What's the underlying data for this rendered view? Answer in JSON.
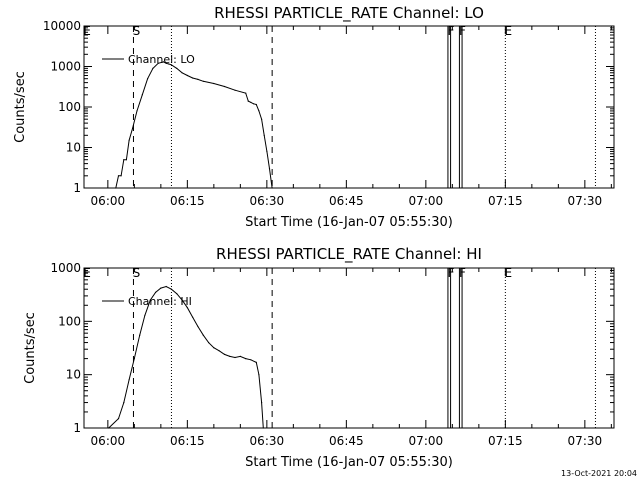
{
  "timestamp": "13-Oct-2021 20:04",
  "chart_data": [
    {
      "type": "line",
      "title": "RHESSI PARTICLE_RATE Channel: LO",
      "xlabel": "Start Time (16-Jan-07 05:55:30)",
      "ylabel": "Counts/sec",
      "legend": {
        "label": "Channel: LO",
        "position": "top-left"
      },
      "y_scale": "log",
      "xlim": [
        "05:55:30",
        "07:35:30"
      ],
      "ylim": [
        1,
        10000
      ],
      "x_ticks": [
        "06:00",
        "06:15",
        "06:30",
        "06:45",
        "07:00",
        "07:15",
        "07:30"
      ],
      "y_ticks": [
        "1",
        "10",
        "100",
        "1000",
        "10000"
      ],
      "markers": [
        {
          "label": "E",
          "time": "05:55:30",
          "style": "none"
        },
        {
          "label": "S",
          "time": "06:04:50",
          "style": "dashed"
        },
        {
          "label": "",
          "time": "06:12:00",
          "style": "dotted"
        },
        {
          "label": "",
          "time": "06:31:00",
          "style": "dashed"
        },
        {
          "label": "F",
          "time": "07:04:10",
          "style": "solid"
        },
        {
          "label": "",
          "time": "07:04:40",
          "style": "solid"
        },
        {
          "label": "F",
          "time": "07:06:20",
          "style": "solid"
        },
        {
          "label": "",
          "time": "07:06:50",
          "style": "solid"
        },
        {
          "label": "E",
          "time": "07:15:00",
          "style": "dotted"
        },
        {
          "label": "",
          "time": "07:32:00",
          "style": "dotted"
        }
      ],
      "series": [
        {
          "x": [
            "06:01:30",
            "06:02:00",
            "06:02:30",
            "06:03:00",
            "06:03:30",
            "06:04:00",
            "06:04:40",
            "06:05:30",
            "06:06:30",
            "06:07:30",
            "06:08:30",
            "06:09:30",
            "06:10:30",
            "06:11:00",
            "06:11:30",
            "06:12:00",
            "06:13:00",
            "06:14:00",
            "06:15:00",
            "06:16:00",
            "06:17:00",
            "06:18:00",
            "06:20:00",
            "06:22:00",
            "06:24:00",
            "06:26:00",
            "06:26:30",
            "06:27:00",
            "06:27:30",
            "06:28:00",
            "06:28:30",
            "06:29:00",
            "06:29:30",
            "06:30:00",
            "06:30:30",
            "06:31:00"
          ],
          "y": [
            1,
            2,
            2,
            5,
            5,
            15,
            30,
            80,
            200,
            500,
            900,
            1200,
            1300,
            1200,
            1150,
            1100,
            900,
            700,
            600,
            520,
            480,
            430,
            380,
            320,
            260,
            220,
            140,
            130,
            120,
            115,
            80,
            50,
            20,
            8,
            3,
            1
          ]
        }
      ]
    },
    {
      "type": "line",
      "title": "RHESSI PARTICLE_RATE Channel: HI",
      "xlabel": "Start Time (16-Jan-07 05:55:30)",
      "ylabel": "Counts/sec",
      "legend": {
        "label": "Channel: HI",
        "position": "top-left"
      },
      "y_scale": "log",
      "xlim": [
        "05:55:30",
        "07:35:30"
      ],
      "ylim": [
        1,
        1000
      ],
      "x_ticks": [
        "06:00",
        "06:15",
        "06:30",
        "06:45",
        "07:00",
        "07:15",
        "07:30"
      ],
      "y_ticks": [
        "1",
        "10",
        "100",
        "1000"
      ],
      "markers": [
        {
          "label": "E",
          "time": "05:55:30",
          "style": "none"
        },
        {
          "label": "S",
          "time": "06:04:50",
          "style": "dashed"
        },
        {
          "label": "",
          "time": "06:12:00",
          "style": "dotted"
        },
        {
          "label": "",
          "time": "06:31:00",
          "style": "dashed"
        },
        {
          "label": "F",
          "time": "07:04:10",
          "style": "solid"
        },
        {
          "label": "",
          "time": "07:04:40",
          "style": "solid"
        },
        {
          "label": "F",
          "time": "07:06:20",
          "style": "solid"
        },
        {
          "label": "",
          "time": "07:06:50",
          "style": "solid"
        },
        {
          "label": "E",
          "time": "07:15:00",
          "style": "dotted"
        },
        {
          "label": "",
          "time": "07:32:00",
          "style": "dotted"
        }
      ],
      "series": [
        {
          "x": [
            "06:00:10",
            "06:02:00",
            "06:03:00",
            "06:04:00",
            "06:05:00",
            "06:06:00",
            "06:07:00",
            "06:08:00",
            "06:09:00",
            "06:10:00",
            "06:11:00",
            "06:12:00",
            "06:13:00",
            "06:14:00",
            "06:15:00",
            "06:16:00",
            "06:17:00",
            "06:18:00",
            "06:19:00",
            "06:20:00",
            "06:21:00",
            "06:22:00",
            "06:23:00",
            "06:24:00",
            "06:25:00",
            "06:26:00",
            "06:27:00",
            "06:28:00",
            "06:28:30",
            "06:29:00",
            "06:29:20"
          ],
          "y": [
            1,
            1.5,
            3,
            8,
            20,
            55,
            130,
            250,
            350,
            420,
            450,
            400,
            330,
            250,
            180,
            120,
            80,
            55,
            40,
            32,
            28,
            24,
            22,
            21,
            22,
            20,
            19,
            17,
            10,
            3,
            1
          ]
        }
      ]
    }
  ]
}
